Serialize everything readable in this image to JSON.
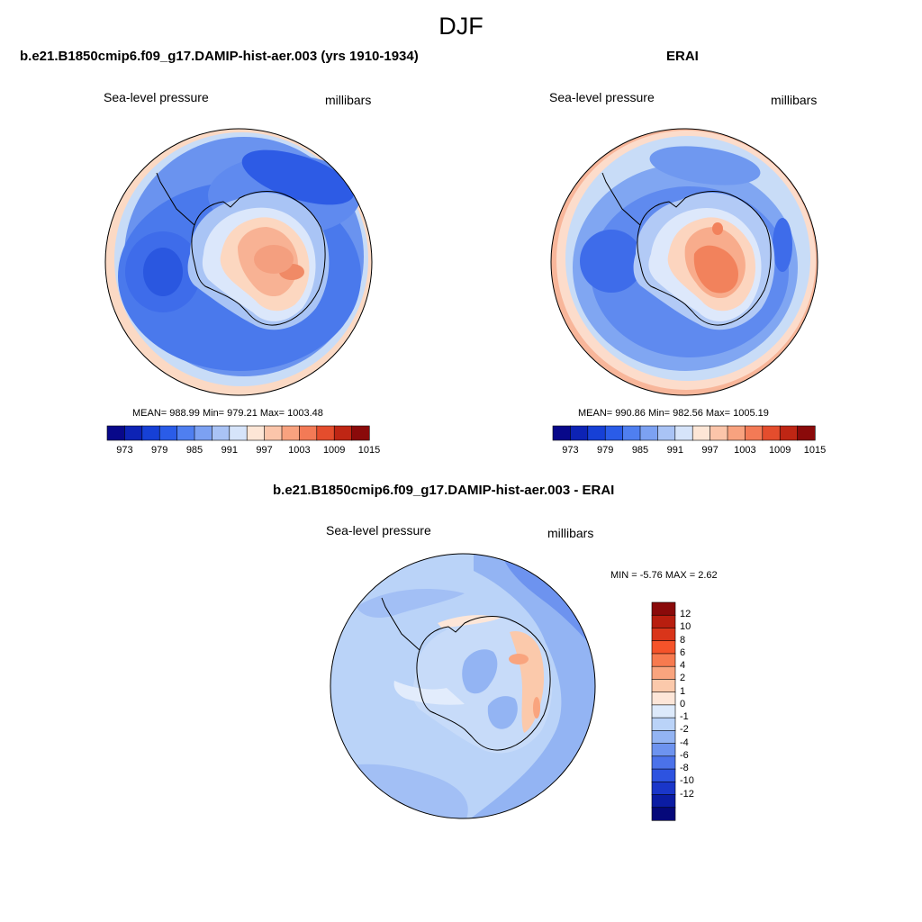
{
  "figure": {
    "title": "DJF"
  },
  "panels": [
    {
      "title": "b.e21.B1850cmip6.f09_g17.DAMIP-hist-aer.003 (yrs 1910-1934)",
      "variable": "Sea-level pressure",
      "units": "millibars",
      "stats": "MEAN= 988.99  Min= 979.21  Max= 1003.48",
      "colorbar_ticks": [
        "973",
        "979",
        "985",
        "991",
        "997",
        "1003",
        "1009",
        "1015"
      ]
    },
    {
      "title": "ERAI",
      "variable": "Sea-level pressure",
      "units": "millibars",
      "stats": "MEAN= 990.86  Min= 982.56  Max= 1005.19",
      "colorbar_ticks": [
        "973",
        "979",
        "985",
        "991",
        "997",
        "1003",
        "1009",
        "1015"
      ]
    },
    {
      "title": "b.e21.B1850cmip6.f09_g17.DAMIP-hist-aer.003 - ERAI",
      "variable": "Sea-level pressure",
      "units": "millibars",
      "stats": "MIN =  -5.76 MAX =   2.62",
      "colorbar_ticks": [
        "12",
        "10",
        "8",
        "6",
        "4",
        "2",
        "1",
        "0",
        "-1",
        "-2",
        "-4",
        "-6",
        "-8",
        "-10",
        "-12"
      ]
    }
  ],
  "colors": {
    "slp_levels": [
      "#08088a",
      "#0d23b5",
      "#1640d6",
      "#2a5ce8",
      "#4f7ff0",
      "#7ca1f2",
      "#a9c3f5",
      "#d6e4fa",
      "#fde6d6",
      "#fbc5aa",
      "#f8a27f",
      "#f37a56",
      "#e44d2d",
      "#bf2614",
      "#8a0a0a"
    ],
    "diff_levels": [
      "#8a0a0a",
      "#b81e0f",
      "#d9351a",
      "#f5532a",
      "#f77a4f",
      "#f9a47e",
      "#fbc9ab",
      "#fde6d8",
      "#ddeafb",
      "#bad3f8",
      "#93b4f3",
      "#6d93ef",
      "#4b72ea",
      "#2d53e0",
      "#1a36c9",
      "#0b1ca3",
      "#05087a"
    ]
  }
}
